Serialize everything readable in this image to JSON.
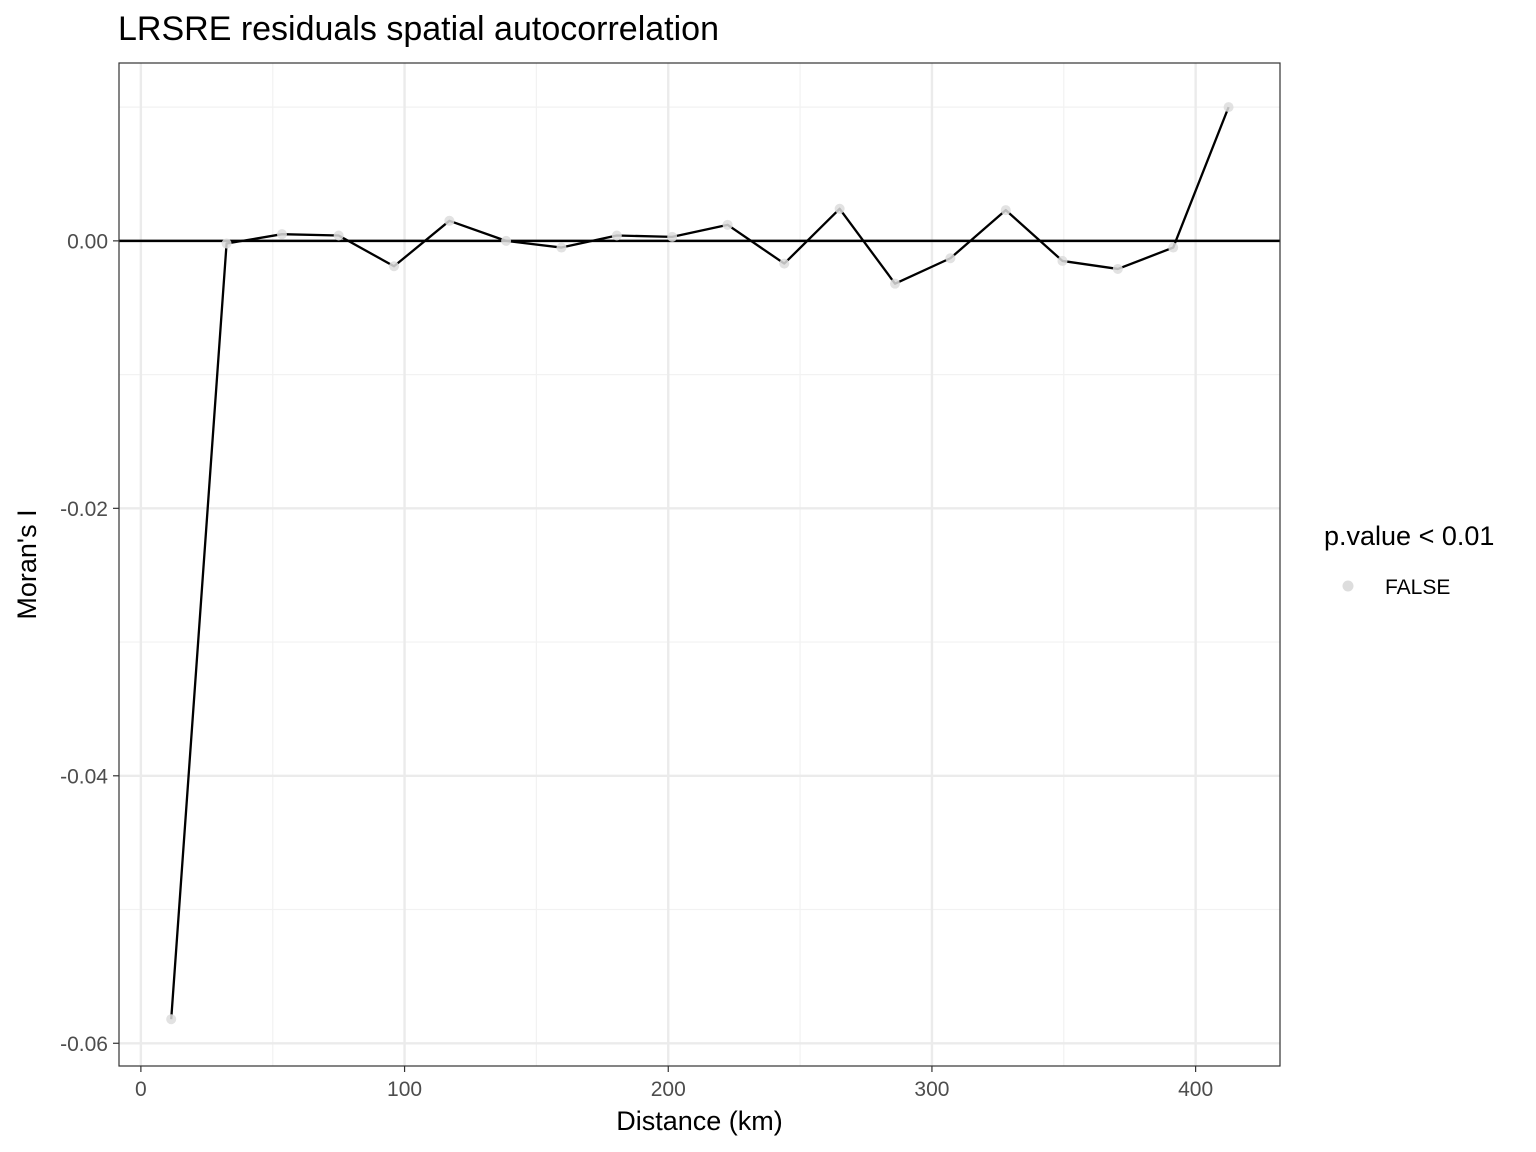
{
  "chart_data": {
    "type": "line",
    "title": "LRSRE residuals spatial autocorrelation",
    "xlabel": "Distance (km)",
    "ylabel": "Moran's I",
    "xlim": [
      -8.3,
      432
    ],
    "ylim": [
      -0.0617,
      0.0133
    ],
    "x_ticks": [
      0,
      100,
      200,
      300,
      400
    ],
    "x_tick_labels": [
      "0",
      "100",
      "200",
      "300",
      "400"
    ],
    "y_ticks": [
      -0.06,
      -0.04,
      -0.02,
      0.0
    ],
    "y_tick_labels": [
      "-0.06",
      "-0.04",
      "-0.02",
      "0.00"
    ],
    "grid": true,
    "hline": 0,
    "legend": {
      "title": "p.value < 0.01",
      "position": "right",
      "entries": [
        {
          "label": "FALSE",
          "color": "#dddddd"
        }
      ]
    },
    "series": [
      {
        "x": [
          11.5,
          32.5,
          53.5,
          75,
          96,
          117,
          138.5,
          159.5,
          180.5,
          201.5,
          222.5,
          244,
          265,
          286,
          307,
          328,
          349.5,
          370.5,
          391.5,
          412.5
        ],
        "y": [
          -0.0582,
          -0.0002,
          0.0005,
          0.0004,
          -0.0019,
          0.0015,
          0.0,
          -0.0005,
          0.0004,
          0.0003,
          0.0012,
          -0.0017,
          0.0024,
          -0.0032,
          -0.0013,
          0.0023,
          -0.0015,
          -0.0021,
          -0.0005,
          0.01
        ]
      }
    ],
    "colors": {
      "line": "#000000",
      "point": "#dddddd",
      "grid_major": "#ebebeb",
      "grid_minor": "#f2f2f2",
      "panel_border": "#333333"
    }
  }
}
